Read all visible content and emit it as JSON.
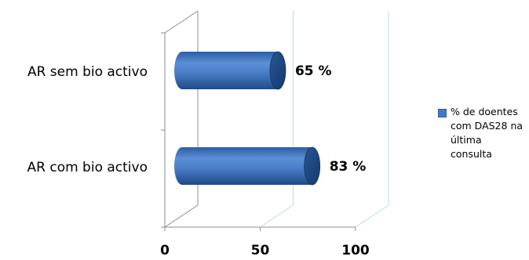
{
  "chart_data": {
    "type": "bar",
    "orientation": "horizontal",
    "style": "3d-cylinder",
    "categories": [
      "AR sem bio activo",
      "AR com bio activo"
    ],
    "series": [
      {
        "name": "% de doentes com DAS28 na última consulta",
        "values": [
          65,
          83
        ],
        "data_labels": [
          "65 %",
          "83 %"
        ],
        "color": "#4477c4"
      }
    ],
    "x_ticks": [
      "0",
      "50",
      "100"
    ],
    "xlim": [
      0,
      100
    ],
    "grid": true,
    "legend_position": "right"
  }
}
